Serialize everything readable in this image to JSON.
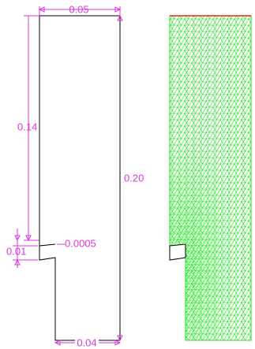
{
  "dimensions": {
    "top_width": "0.05",
    "upper_height": "0.14",
    "total_height": "0.20",
    "notch_height": "0.01",
    "crack_width": "0.0005",
    "bottom_width": "0.04"
  }
}
